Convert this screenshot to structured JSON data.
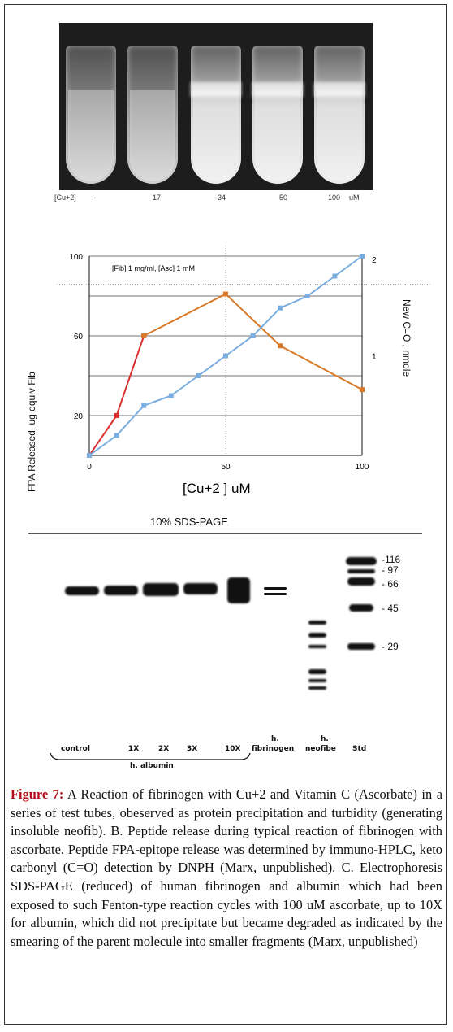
{
  "panel_a": {
    "conc_label": "[Cu+2]",
    "conc_values": [
      "--",
      "17",
      "34",
      "50",
      "100"
    ],
    "conc_unit": "uM",
    "tubes": [
      "clear",
      "clear",
      "hazy",
      "hazy",
      "hazy"
    ]
  },
  "chart_data": {
    "type": "line",
    "annotation": "[Fib] 1 mg/ml, [Asc] 1 mM",
    "xlabel": "[Cu+2 ] uM",
    "ylabel": "FPA Released, ug equiv Fib",
    "y2label": "New C=O , nmole",
    "x_ticks": [
      "0",
      "50",
      "100"
    ],
    "y_ticks": [
      "20",
      "60",
      "100"
    ],
    "y2_ticks": [
      "1",
      "2"
    ],
    "xlim": [
      0,
      100
    ],
    "ylim": [
      0,
      100
    ],
    "grid": true,
    "series": [
      {
        "color": "#d93030",
        "x": [
          0,
          10,
          20
        ],
        "values": [
          0,
          20,
          60
        ]
      },
      {
        "color": "#d97a2a",
        "x": [
          20,
          50,
          70,
          100
        ],
        "values": [
          60,
          81,
          55,
          33
        ]
      },
      {
        "color": "#7aaee0",
        "x": [
          0,
          10,
          20,
          30,
          40,
          50,
          60,
          70,
          80,
          90,
          100
        ],
        "values": [
          0,
          10,
          25,
          30,
          40,
          50,
          60,
          74,
          80,
          90,
          100
        ]
      }
    ]
  },
  "panel_c": {
    "title": "10% SDS-PAGE",
    "markers": [
      "-116",
      "- 97",
      "- 66",
      "- 45",
      "- 29"
    ],
    "lanes": {
      "control": "control",
      "x1": "1X",
      "x2": "2X",
      "x3": "3X",
      "x10": "10X",
      "fib_a": "h.",
      "fib_b": "fibrinogen",
      "neo_a": "h.",
      "neo_b": "neofibe",
      "std": "Std",
      "group": "h. albumin"
    }
  },
  "caption": {
    "label": "Figure 7:",
    "text": " A Reaction of fibrinogen with Cu+2 and Vitamin C (Ascorbate) in a series of test tubes, obeserved as protein precipitation and turbidity (generating insoluble neofib). B. Peptide release during typical reaction of fibrinogen with ascorbate. Peptide FPA-epitope release was determined by immuno-HPLC, keto carbonyl (C=O) detection by DNPH (Marx, unpublished). C. Electrophoresis SDS-PAGE (reduced) of human fibrinogen and albumin which had been exposed to such Fenton-type reaction cycles with 100 uM ascorbate, up to 10X for albumin, which did not precipitate but became degraded as indicated by the smearing of the parent molecule into smaller fragments (Marx, unpublished)"
  }
}
